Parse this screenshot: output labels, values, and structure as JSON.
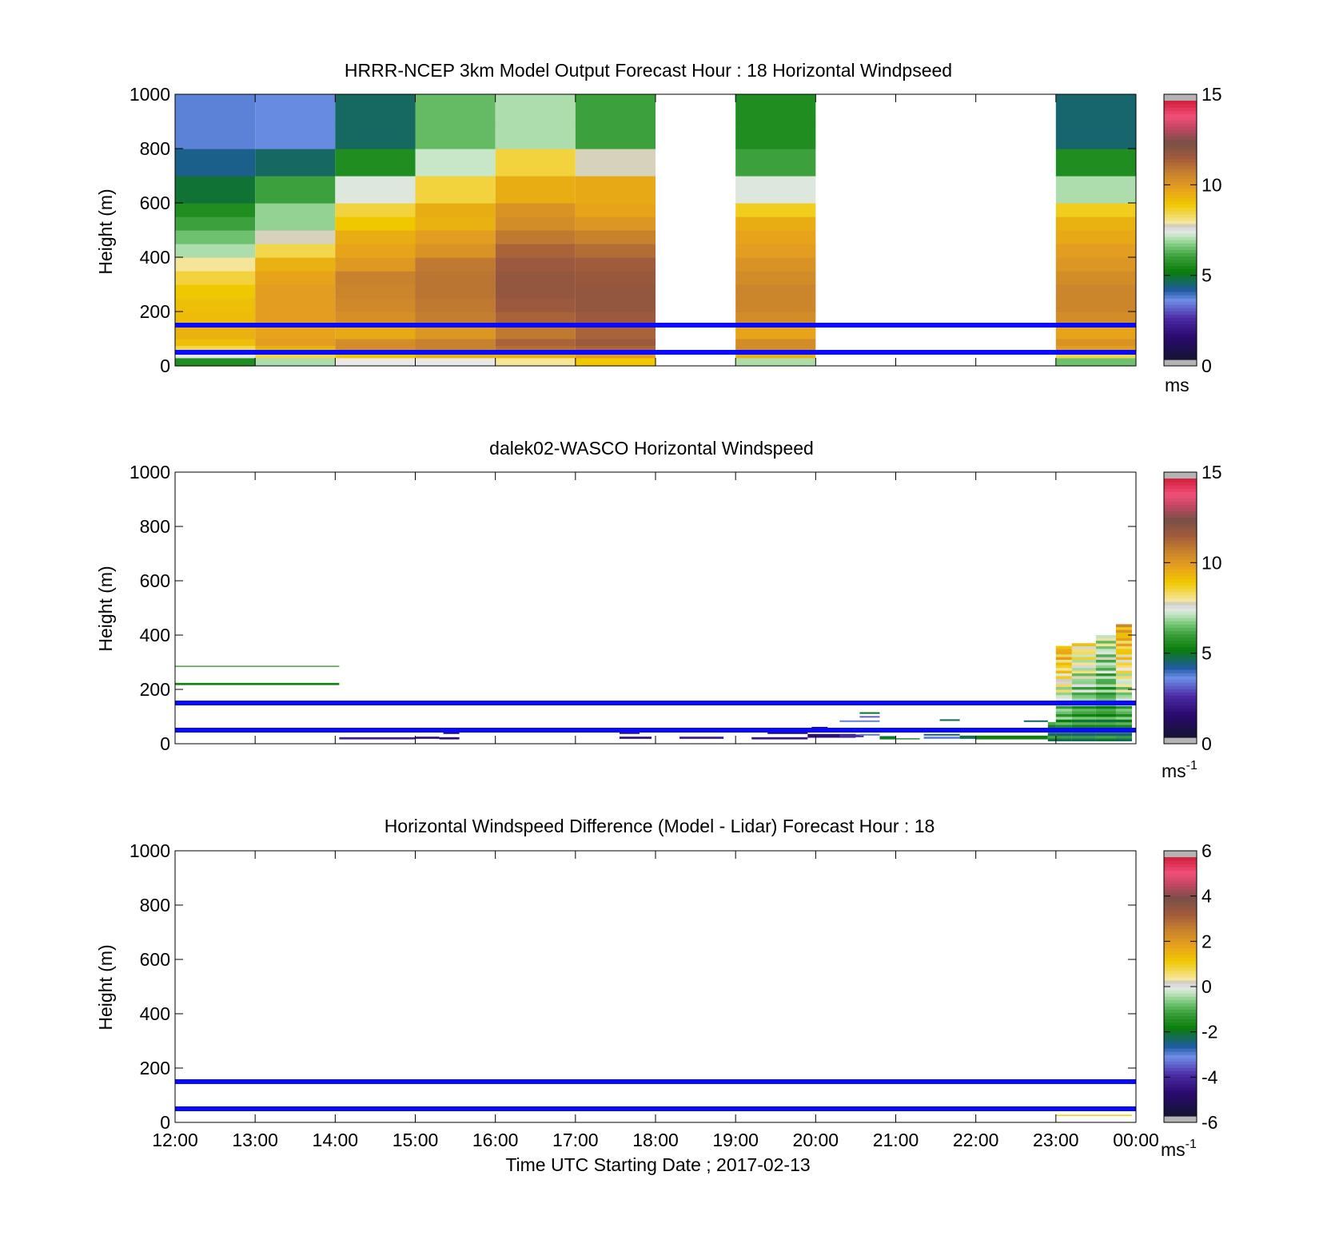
{
  "figure": {
    "xlabel": "Time UTC  Starting Date ; 2017-02-13",
    "x_tick_labels": [
      "12:00",
      "13:00",
      "14:00",
      "15:00",
      "16:00",
      "17:00",
      "18:00",
      "19:00",
      "20:00",
      "21:00",
      "22:00",
      "23:00",
      "00:00"
    ],
    "y_tick_labels": [
      "0",
      "200",
      "400",
      "600",
      "800",
      "1000"
    ],
    "ylabel": "Height (m)",
    "reference_lines_m": [
      50,
      150
    ],
    "reference_line_color": "#0a0aff"
  },
  "colors": {
    "speed_scale": [
      "#141432",
      "#2a0a6e",
      "#4b2aa5",
      "#6f8fe8",
      "#1e5aa0",
      "#0a7d0a",
      "#3ca03c",
      "#78c878",
      "#c8e6c8",
      "#e8e8e8",
      "#c8c8c8",
      "#f5e6a0",
      "#f0c800",
      "#e6a01e",
      "#c8822d",
      "#a05a3c",
      "#785046",
      "#c84664",
      "#f05078",
      "#d21e3c",
      "#b4b4b4"
    ]
  },
  "chart_data": [
    {
      "type": "heatmap",
      "title": "HRRR-NCEP 3km Model Output   Forecast Hour : 18 Horizontal Windpseed",
      "xlabel": "",
      "ylabel": "Height (m)",
      "xlim": [
        "12:00",
        "00:00"
      ],
      "ylim": [
        0,
        1000
      ],
      "colorbar": {
        "range": [
          0,
          15
        ],
        "ticks": [
          "0",
          "5",
          "10",
          "15"
        ],
        "unit": "ms",
        "unit_sup": ""
      },
      "bin_edges_m": [
        0,
        30,
        50,
        75,
        100,
        150,
        200,
        250,
        300,
        350,
        400,
        450,
        500,
        550,
        600,
        700,
        800,
        900,
        1000
      ],
      "columns": [
        {
          "start": "12:00",
          "end": "13:00",
          "values": [
            5.5,
            7.5,
            8.5,
            9.2,
            9.5,
            9.3,
            9.2,
            9.0,
            8.6,
            8.0,
            7.0,
            6.5,
            6.0,
            5.5,
            4.8,
            4.2,
            3.6,
            3.6
          ]
        },
        {
          "start": "13:00",
          "end": "14:00",
          "values": [
            7.0,
            8.5,
            9.5,
            10.0,
            9.8,
            10.0,
            10.0,
            10.0,
            9.8,
            9.5,
            8.5,
            7.8,
            6.8,
            6.8,
            6.0,
            4.5,
            3.5,
            3.5
          ]
        },
        {
          "start": "14:00",
          "end": "15:00",
          "values": [
            7.5,
            9.0,
            10.5,
            10.5,
            9.7,
            10.4,
            10.6,
            10.7,
            10.8,
            10.1,
            9.8,
            9.6,
            9.0,
            8.6,
            7.4,
            5.5,
            4.5,
            4.5
          ]
        },
        {
          "start": "15:00",
          "end": "16:00",
          "values": [
            7.5,
            9.5,
            10.8,
            10.8,
            10.2,
            10.9,
            11.0,
            11.1,
            11.1,
            11.0,
            10.3,
            10.0,
            9.5,
            9.6,
            8.6,
            7.2,
            6.4,
            6.4
          ]
        },
        {
          "start": "16:00",
          "end": "17:00",
          "values": [
            8.0,
            9.5,
            11.2,
            11.5,
            11.0,
            11.5,
            11.8,
            12.0,
            12.0,
            11.8,
            11.5,
            11.0,
            10.5,
            10.3,
            9.6,
            8.6,
            7.0,
            7.0
          ]
        },
        {
          "start": "17:00",
          "end": "18:00",
          "values": [
            9.0,
            10.0,
            11.4,
            11.8,
            11.5,
            11.8,
            12.0,
            12.0,
            11.9,
            11.7,
            11.3,
            10.8,
            10.2,
            9.8,
            9.7,
            7.8,
            6.0,
            6.0
          ]
        },
        {
          "start": "19:00",
          "end": "20:00",
          "values": [
            7.0,
            9.5,
            10.5,
            10.5,
            9.8,
            10.5,
            10.7,
            10.7,
            10.5,
            10.3,
            10.0,
            9.8,
            9.6,
            8.8,
            7.4,
            6.0,
            5.5,
            5.5
          ]
        },
        {
          "start": "23:00",
          "end": "00:00",
          "values": [
            6.5,
            8.5,
            10.0,
            10.3,
            9.8,
            10.5,
            10.7,
            10.7,
            10.5,
            10.2,
            10.0,
            9.7,
            9.5,
            8.8,
            7.0,
            5.5,
            4.4,
            4.4
          ]
        }
      ]
    },
    {
      "type": "heatmap",
      "title": "dalek02-WASCO  Horizontal Windspeed",
      "xlabel": "",
      "ylabel": "Height (m)",
      "xlim": [
        "12:00",
        "00:00"
      ],
      "ylim": [
        0,
        1000
      ],
      "colorbar": {
        "range": [
          0,
          15
        ],
        "ticks": [
          "0",
          "5",
          "10",
          "15"
        ],
        "unit": "ms",
        "unit_sup": "-1"
      },
      "segments": [
        {
          "x0": 0.0,
          "x1": 2.05,
          "y0": 283,
          "y1": 287,
          "v": 5.8
        },
        {
          "x0": 0.0,
          "x1": 2.05,
          "y0": 216,
          "y1": 224,
          "v": 5.2
        },
        {
          "x0": 2.05,
          "x1": 3.0,
          "y0": 16,
          "y1": 24,
          "v": 2.0
        },
        {
          "x0": 3.0,
          "x1": 3.3,
          "y0": 18,
          "y1": 26,
          "v": 1.6
        },
        {
          "x0": 3.3,
          "x1": 3.55,
          "y0": 16,
          "y1": 24,
          "v": 1.4
        },
        {
          "x0": 3.35,
          "x1": 3.55,
          "y0": 36,
          "y1": 44,
          "v": 1.3
        },
        {
          "x0": 5.55,
          "x1": 5.8,
          "y0": 36,
          "y1": 44,
          "v": 1.6
        },
        {
          "x0": 5.55,
          "x1": 5.95,
          "y0": 18,
          "y1": 26,
          "v": 1.6
        },
        {
          "x0": 6.3,
          "x1": 6.85,
          "y0": 18,
          "y1": 26,
          "v": 2.0
        },
        {
          "x0": 7.2,
          "x1": 7.9,
          "y0": 16,
          "y1": 24,
          "v": 1.7
        },
        {
          "x0": 7.4,
          "x1": 7.9,
          "y0": 36,
          "y1": 44,
          "v": 1.2
        },
        {
          "x0": 7.9,
          "x1": 8.5,
          "y0": 22,
          "y1": 36,
          "v": 1.5
        },
        {
          "x0": 7.95,
          "x1": 8.15,
          "y0": 56,
          "y1": 62,
          "v": 0.8
        },
        {
          "x0": 8.1,
          "x1": 8.35,
          "y0": 44,
          "y1": 54,
          "v": 1.4
        },
        {
          "x0": 8.3,
          "x1": 8.6,
          "y0": 24,
          "y1": 34,
          "v": 2.4
        },
        {
          "x0": 8.3,
          "x1": 8.8,
          "y0": 80,
          "y1": 86,
          "v": 3.3
        },
        {
          "x0": 8.55,
          "x1": 8.8,
          "y0": 30,
          "y1": 36,
          "v": 3.6
        },
        {
          "x0": 8.55,
          "x1": 8.8,
          "y0": 110,
          "y1": 116,
          "v": 4.9
        },
        {
          "x0": 8.55,
          "x1": 8.8,
          "y0": 96,
          "y1": 102,
          "v": 3.0
        },
        {
          "x0": 8.8,
          "x1": 9.0,
          "y0": 16,
          "y1": 28,
          "v": 4.8
        },
        {
          "x0": 8.8,
          "x1": 9.3,
          "y0": 16,
          "y1": 20,
          "v": 5.2
        },
        {
          "x0": 9.35,
          "x1": 9.8,
          "y0": 18,
          "y1": 26,
          "v": 3.6
        },
        {
          "x0": 9.35,
          "x1": 9.8,
          "y0": 30,
          "y1": 36,
          "v": 4.2
        },
        {
          "x0": 9.35,
          "x1": 9.8,
          "y0": 50,
          "y1": 56,
          "v": 3.4
        },
        {
          "x0": 9.55,
          "x1": 9.8,
          "y0": 84,
          "y1": 90,
          "v": 4.6
        },
        {
          "x0": 9.8,
          "x1": 10.0,
          "y0": 18,
          "y1": 30,
          "v": 4.6
        },
        {
          "x0": 10.0,
          "x1": 10.9,
          "y0": 16,
          "y1": 30,
          "v": 5.2
        },
        {
          "x0": 10.6,
          "x1": 10.9,
          "y0": 80,
          "y1": 86,
          "v": 4.4
        }
      ],
      "profiles": [
        {
          "x0": 10.9,
          "x1": 11.0,
          "y0": 10,
          "v0": 5.2,
          "y1": 80,
          "v1": 5.6
        },
        {
          "x0": 11.0,
          "x1": 11.2,
          "y0": 10,
          "v0": 5.0,
          "y1": 360,
          "v1": 9.8
        },
        {
          "x0": 11.2,
          "x1": 11.5,
          "y0": 10,
          "v0": 5.0,
          "y1": 370,
          "v1": 8.4
        },
        {
          "x0": 11.5,
          "x1": 11.75,
          "y0": 10,
          "v0": 5.2,
          "y1": 400,
          "v1": 7.4
        },
        {
          "x0": 11.75,
          "x1": 11.95,
          "y0": 10,
          "v0": 5.0,
          "y1": 440,
          "v1": 10.0
        }
      ]
    },
    {
      "type": "heatmap",
      "title": "Horizontal Windspeed Difference (Model - Lidar) Forecast Hour : 18",
      "xlabel": "Time UTC  Starting Date ; 2017-02-13",
      "ylabel": "Height (m)",
      "xlim": [
        "12:00",
        "00:00"
      ],
      "ylim": [
        0,
        1000
      ],
      "colorbar": {
        "range": [
          -6,
          6
        ],
        "ticks": [
          "-6",
          "-4",
          "-2",
          "0",
          "2",
          "4",
          "6"
        ],
        "unit": "ms",
        "unit_sup": "-1"
      },
      "segments": [
        {
          "x0": 11.0,
          "x1": 11.95,
          "y0": 24,
          "y1": 28,
          "v": 1.2
        }
      ]
    }
  ]
}
